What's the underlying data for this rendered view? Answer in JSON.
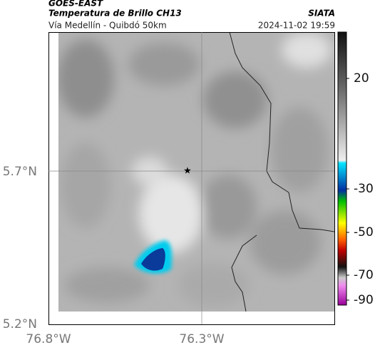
{
  "header": {
    "source": "GOES-EAST",
    "product": "Temperatura de Brillo CH13",
    "region": "Vía Medellín - Quibdó 50km",
    "agency": "SIATA",
    "datetime": "2024-11-02 19:59"
  },
  "map": {
    "lat_ticks": [
      "5.7°N",
      "5.2°N"
    ],
    "lon_ticks": [
      "76.8°W",
      "76.3°W"
    ]
  },
  "colorbar": {
    "ticks": [
      20,
      -30,
      -50,
      -70,
      -90
    ]
  }
}
